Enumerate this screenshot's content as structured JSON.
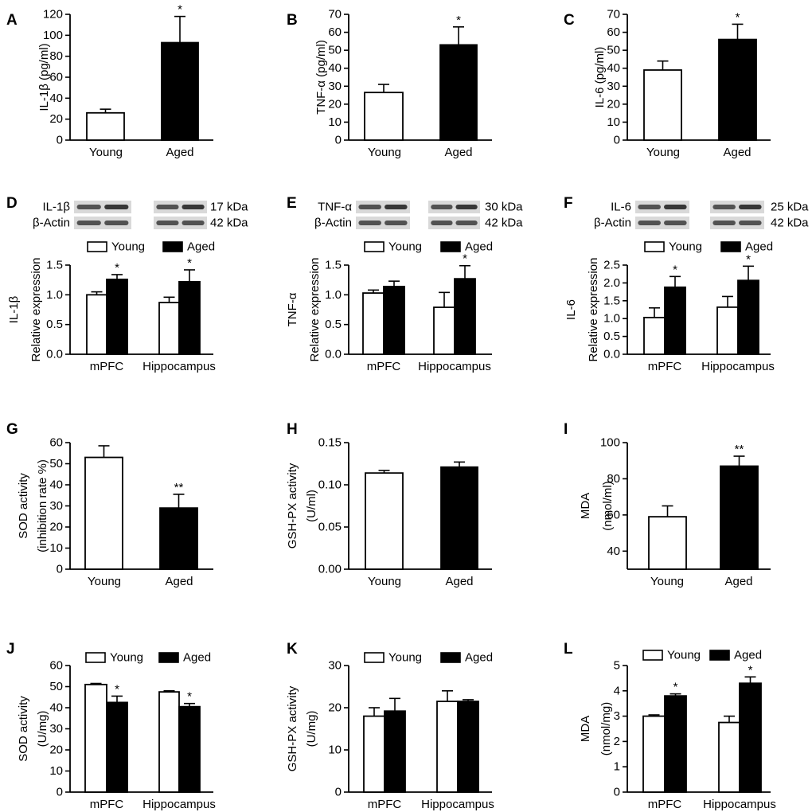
{
  "legend": {
    "young": "Young",
    "aged": "Aged"
  },
  "chart_data": [
    {
      "id": "A",
      "panel_label": "A",
      "type": "bar",
      "ylabel": "IL-1β (pg/ml)",
      "categories": [
        "Young",
        "Aged"
      ],
      "values": [
        26,
        93
      ],
      "errors": [
        3.5,
        25
      ],
      "sig": [
        "",
        "*"
      ],
      "ylim": [
        0,
        120
      ],
      "yticks": [
        "0",
        "20",
        "40",
        "60",
        "80",
        "100",
        "120"
      ]
    },
    {
      "id": "B",
      "panel_label": "B",
      "type": "bar",
      "ylabel": "TNF-α (pg/ml)",
      "categories": [
        "Young",
        "Aged"
      ],
      "values": [
        26.5,
        53
      ],
      "errors": [
        4.5,
        10
      ],
      "sig": [
        "",
        "*"
      ],
      "ylim": [
        0,
        70
      ],
      "yticks": [
        "0",
        "10",
        "20",
        "30",
        "40",
        "50",
        "60",
        "70"
      ]
    },
    {
      "id": "C",
      "panel_label": "C",
      "type": "bar",
      "ylabel": "IL-6 (pg/ml)",
      "categories": [
        "Young",
        "Aged"
      ],
      "values": [
        39,
        56
      ],
      "errors": [
        5,
        8.5
      ],
      "sig": [
        "",
        "*"
      ],
      "ylim": [
        0,
        70
      ],
      "yticks": [
        "0",
        "10",
        "20",
        "30",
        "40",
        "50",
        "60",
        "70"
      ]
    },
    {
      "id": "D",
      "panel_label": "D",
      "type": "grouped-bar",
      "ylabel": "IL-1β",
      "ylabel2": "Relative expression",
      "categories": [
        "mPFC",
        "Hippocampus"
      ],
      "series": [
        {
          "name": "Young",
          "values": [
            1.0,
            0.87
          ],
          "errors": [
            0.05,
            0.09
          ]
        },
        {
          "name": "Aged",
          "values": [
            1.26,
            1.22
          ],
          "errors": [
            0.08,
            0.2
          ]
        }
      ],
      "sig": [
        [
          "",
          "*"
        ],
        [
          "",
          "*"
        ]
      ],
      "ylim": [
        0,
        1.5
      ],
      "yticks": [
        "0.0",
        "0.5",
        "1.0",
        "1.5"
      ],
      "blot": {
        "protein": "IL-1β",
        "protein_kda": "17 kDa",
        "control": "β-Actin",
        "control_kda": "42 kDa"
      }
    },
    {
      "id": "E",
      "panel_label": "E",
      "type": "grouped-bar",
      "ylabel": "TNF-α",
      "ylabel2": "Relative expression",
      "categories": [
        "mPFC",
        "Hippocampus"
      ],
      "series": [
        {
          "name": "Young",
          "values": [
            1.03,
            0.79
          ],
          "errors": [
            0.05,
            0.25
          ]
        },
        {
          "name": "Aged",
          "values": [
            1.14,
            1.27
          ],
          "errors": [
            0.09,
            0.22
          ]
        }
      ],
      "sig": [
        [
          "",
          ""
        ],
        [
          "",
          "*"
        ]
      ],
      "ylim": [
        0,
        1.5
      ],
      "yticks": [
        "0.0",
        "0.5",
        "1.0",
        "1.5"
      ],
      "blot": {
        "protein": "TNF-α",
        "protein_kda": "30 kDa",
        "control": "β-Actin",
        "control_kda": "42 kDa"
      }
    },
    {
      "id": "F",
      "panel_label": "F",
      "type": "grouped-bar",
      "ylabel": "IL-6",
      "ylabel2": "Relative expression",
      "categories": [
        "mPFC",
        "Hippocampus"
      ],
      "series": [
        {
          "name": "Young",
          "values": [
            1.03,
            1.32
          ],
          "errors": [
            0.27,
            0.3
          ]
        },
        {
          "name": "Aged",
          "values": [
            1.88,
            2.07
          ],
          "errors": [
            0.3,
            0.4
          ]
        }
      ],
      "sig": [
        [
          "",
          "*"
        ],
        [
          "",
          "*"
        ]
      ],
      "ylim": [
        0,
        2.5
      ],
      "yticks": [
        "0.0",
        "0.5",
        "1.0",
        "1.5",
        "2.0",
        "2.5"
      ],
      "blot": {
        "protein": "IL-6",
        "protein_kda": "25 kDa",
        "control": "β-Actin",
        "control_kda": "42 kDa"
      }
    },
    {
      "id": "G",
      "panel_label": "G",
      "type": "bar",
      "ylabel": "SOD activity",
      "ylabel2": "(inhibition rate %)",
      "categories": [
        "Young",
        "Aged"
      ],
      "values": [
        53,
        29
      ],
      "errors": [
        5.5,
        6.5
      ],
      "sig": [
        "",
        "**"
      ],
      "ylim": [
        0,
        60
      ],
      "yticks": [
        "0",
        "10",
        "20",
        "30",
        "40",
        "50",
        "60"
      ]
    },
    {
      "id": "H",
      "panel_label": "H",
      "type": "bar",
      "ylabel": "GSH-PX activity",
      "ylabel2": "(U/ml)",
      "categories": [
        "Young",
        "Aged"
      ],
      "values": [
        0.114,
        0.121
      ],
      "errors": [
        0.003,
        0.006
      ],
      "sig": [
        "",
        ""
      ],
      "ylim": [
        0,
        0.15
      ],
      "yticks": [
        "0.00",
        "0.05",
        "0.10",
        "0.15"
      ]
    },
    {
      "id": "I",
      "panel_label": "I",
      "type": "bar",
      "ylabel": "MDA",
      "ylabel2": "(nmol/ml)",
      "categories": [
        "Young",
        "Aged"
      ],
      "values": [
        59,
        87
      ],
      "errors": [
        6,
        5.5
      ],
      "sig": [
        "",
        "**"
      ],
      "ylim": [
        30,
        100
      ],
      "yticks": [
        "40",
        "60",
        "80",
        "100"
      ],
      "ytick_values": [
        40,
        60,
        80,
        100
      ]
    },
    {
      "id": "J",
      "panel_label": "J",
      "type": "grouped-bar",
      "ylabel": "SOD activity",
      "ylabel2": "(U/mg)",
      "categories": [
        "mPFC",
        "Hippocampus"
      ],
      "series": [
        {
          "name": "Young",
          "values": [
            51,
            47.5
          ],
          "errors": [
            0.5,
            0.5
          ]
        },
        {
          "name": "Aged",
          "values": [
            42.5,
            40.5
          ],
          "errors": [
            3,
            1.5
          ]
        }
      ],
      "sig": [
        [
          "",
          "*"
        ],
        [
          "",
          "*"
        ]
      ],
      "ylim": [
        0,
        60
      ],
      "yticks": [
        "0",
        "10",
        "20",
        "30",
        "40",
        "50",
        "60"
      ]
    },
    {
      "id": "K",
      "panel_label": "K",
      "type": "grouped-bar",
      "ylabel": "GSH-PX activity",
      "ylabel2": "(U/mg)",
      "categories": [
        "mPFC",
        "Hippocampus"
      ],
      "series": [
        {
          "name": "Young",
          "values": [
            18,
            21.5
          ],
          "errors": [
            2,
            2.5
          ]
        },
        {
          "name": "Aged",
          "values": [
            19.2,
            21.5
          ],
          "errors": [
            3,
            0.4
          ]
        }
      ],
      "sig": [
        [
          "",
          ""
        ],
        [
          "",
          ""
        ]
      ],
      "ylim": [
        0,
        30
      ],
      "yticks": [
        "0",
        "10",
        "20",
        "30"
      ]
    },
    {
      "id": "L",
      "panel_label": "L",
      "type": "grouped-bar",
      "ylabel": "MDA",
      "ylabel2": "(nmol/mg)",
      "categories": [
        "mPFC",
        "Hippocampus"
      ],
      "series": [
        {
          "name": "Young",
          "values": [
            3.0,
            2.75
          ],
          "errors": [
            0.05,
            0.25
          ]
        },
        {
          "name": "Aged",
          "values": [
            3.8,
            4.3
          ],
          "errors": [
            0.08,
            0.25
          ]
        }
      ],
      "sig": [
        [
          "",
          "*"
        ],
        [
          "",
          "*"
        ]
      ],
      "ylim": [
        0,
        5
      ],
      "yticks": [
        "0",
        "1",
        "2",
        "3",
        "4",
        "5"
      ]
    }
  ]
}
